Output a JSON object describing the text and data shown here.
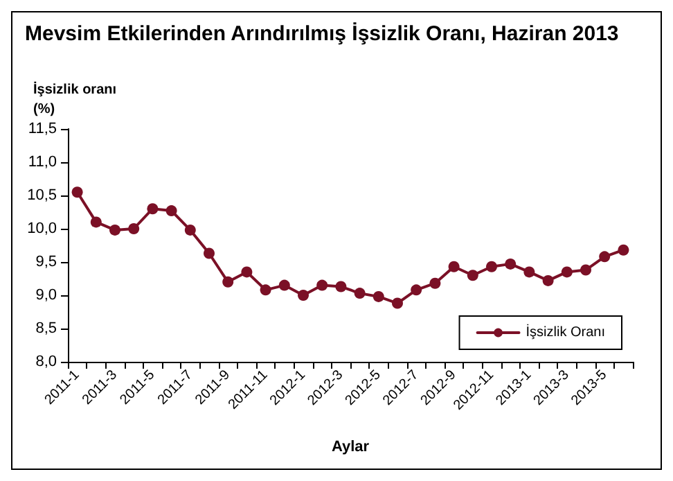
{
  "chart_data": {
    "type": "line",
    "title": "Mevsim Etkilerinden Arındırılmış İşsizlik Oranı, Haziran 2013",
    "ylabel": "İşsizlik oranı\n(%)",
    "xlabel": "Aylar",
    "categories": [
      "2011-1",
      null,
      "2011-3",
      null,
      "2011-5",
      null,
      "2011-7",
      null,
      "2011-9",
      null,
      "2011-11",
      null,
      "2012-1",
      null,
      "2012-3",
      null,
      "2012-5",
      null,
      "2012-7",
      null,
      "2012-9",
      null,
      "2012-11",
      null,
      "2013-1",
      null,
      "2013-3",
      null,
      "2013-5",
      null
    ],
    "series": [
      {
        "name": "İşsizlik Oranı",
        "color": "#7b1026",
        "values": [
          10.55,
          10.1,
          9.98,
          10.0,
          10.3,
          10.27,
          9.98,
          9.63,
          9.2,
          9.35,
          9.08,
          9.15,
          9.0,
          9.15,
          9.13,
          9.03,
          8.98,
          8.88,
          9.08,
          9.18,
          9.43,
          9.3,
          9.43,
          9.47,
          9.35,
          9.22,
          9.35,
          9.38,
          9.58,
          9.68
        ]
      }
    ],
    "ylim": [
      8.0,
      11.5
    ],
    "yticks": [
      {
        "value": 8.0,
        "label": "8,0"
      },
      {
        "value": 8.5,
        "label": "8,5"
      },
      {
        "value": 9.0,
        "label": "9,0"
      },
      {
        "value": 9.5,
        "label": "9,5"
      },
      {
        "value": 10.0,
        "label": "10,0"
      },
      {
        "value": 10.5,
        "label": "10,5"
      },
      {
        "value": 11.0,
        "label": "11,0"
      },
      {
        "value": 11.5,
        "label": "11,5"
      }
    ],
    "grid": false,
    "legend": "bottom right",
    "marker": "circle",
    "line_style": "solid"
  }
}
